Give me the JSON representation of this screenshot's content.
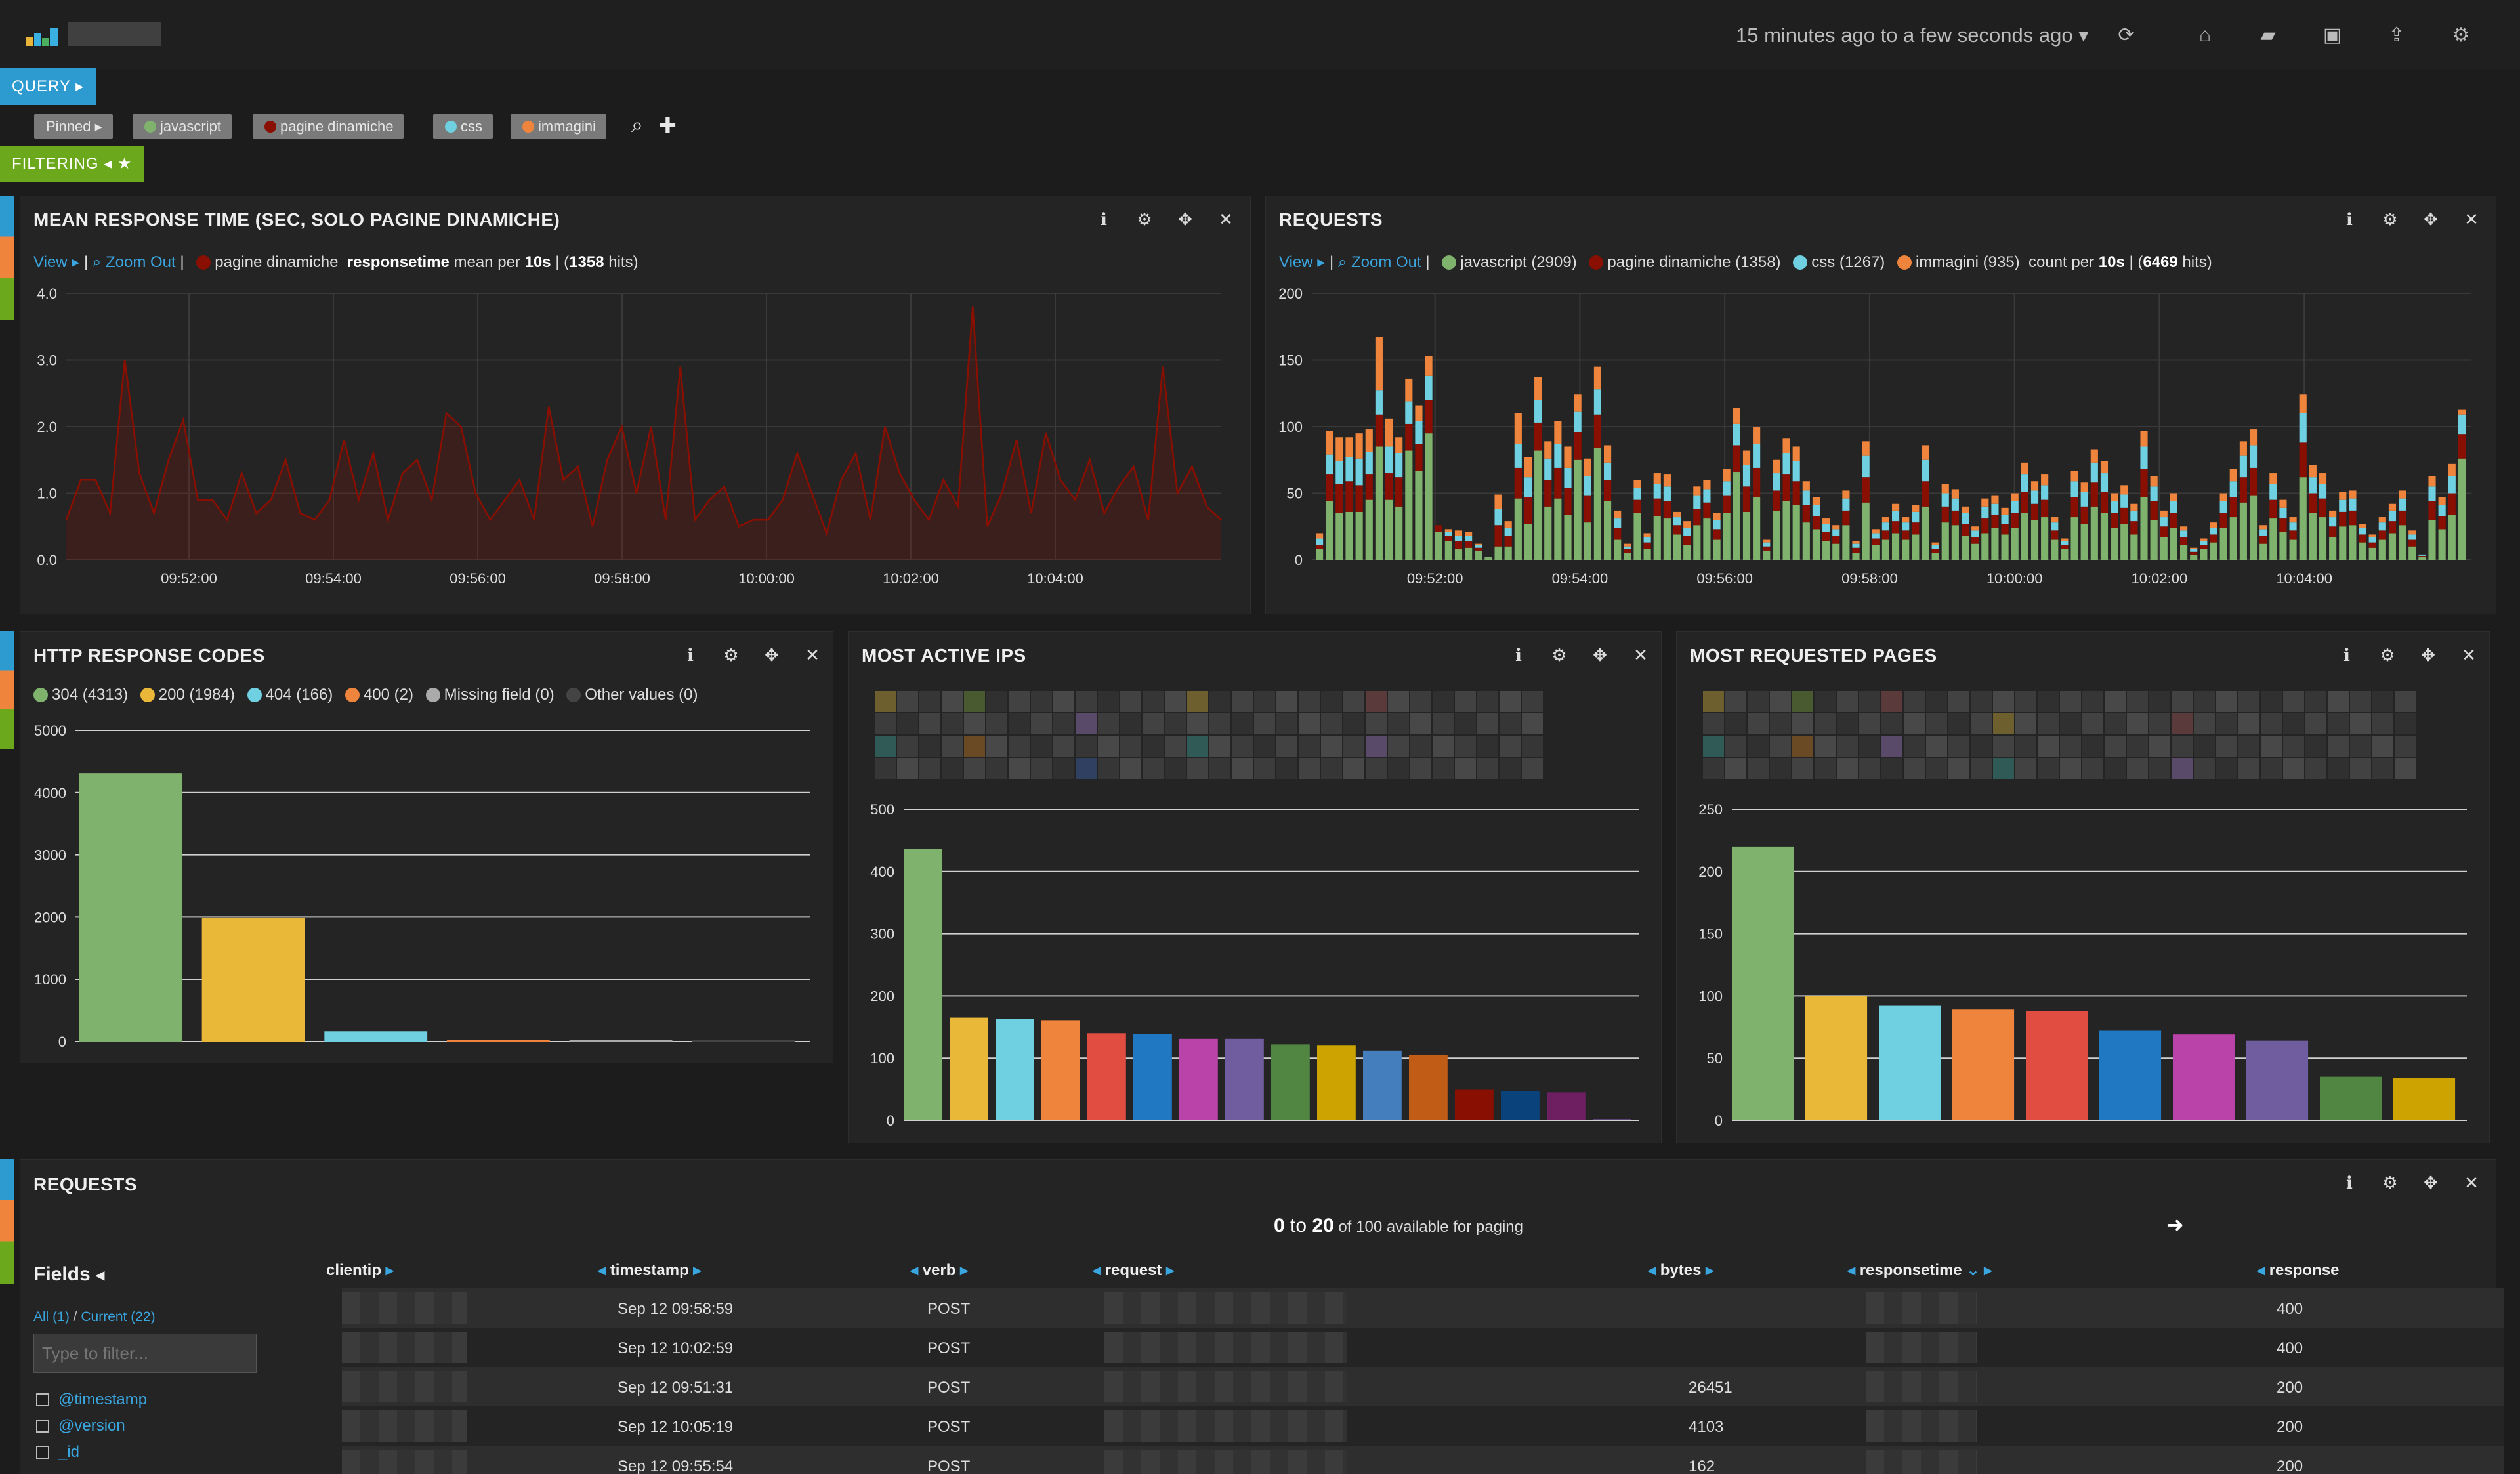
{
  "topbar": {
    "time_range": "15 minutes ago to a few seconds ago",
    "icons": [
      "refresh-icon",
      "home-icon",
      "open-folder-icon",
      "save-icon",
      "share-icon",
      "gear-icon"
    ]
  },
  "query": {
    "label": "QUERY"
  },
  "filtering": {
    "label": "FILTERING"
  },
  "query_pills": [
    {
      "label": "Pinned",
      "color": "#7a7a7a"
    },
    {
      "label": "javascript",
      "color": "#7eb26d"
    },
    {
      "label": "pagine dinamiche",
      "color": "#890f02"
    },
    {
      "label": "css",
      "color": "#6ed0e0"
    },
    {
      "label": "immagini",
      "color": "#ef843c"
    }
  ],
  "panels": {
    "mean_response": {
      "title": "MEAN RESPONSE TIME (SEC, SOLO PAGINE DINAMICHE)",
      "view": "View",
      "zoom_out": "Zoom Out",
      "series_label": "pagine dinamiche",
      "field": "responsetime",
      "agg_text": " mean per ",
      "interval": "10s",
      "hits_prefix": " | (",
      "hits": "1358",
      "hits_suffix": " hits)"
    },
    "requests_chart": {
      "title": "REQUESTS",
      "view": "View",
      "zoom_out": "Zoom Out",
      "legend": [
        {
          "label": "javascript (2909)",
          "color": "#7eb26d"
        },
        {
          "label": "pagine dinamiche (1358)",
          "color": "#890f02"
        },
        {
          "label": "css (1267)",
          "color": "#6ed0e0"
        },
        {
          "label": "immagini (935)",
          "color": "#ef843c"
        }
      ],
      "agg_text": "count per ",
      "interval": "10s",
      "hits_prefix": " | (",
      "hits": "6469",
      "hits_suffix": " hits)"
    },
    "http_codes": {
      "title": "HTTP RESPONSE CODES",
      "legend": [
        {
          "label": "304 (4313)",
          "color": "#7eb26d"
        },
        {
          "label": "200 (1984)",
          "color": "#eab839"
        },
        {
          "label": "404 (166)",
          "color": "#6ed0e0"
        },
        {
          "label": "400 (2)",
          "color": "#ef843c"
        },
        {
          "label": "Missing field (0)",
          "color": "#aaaaaa"
        },
        {
          "label": "Other values (0)",
          "color": "#444444"
        }
      ]
    },
    "active_ips": {
      "title": "MOST ACTIVE IPS"
    },
    "requested_pages": {
      "title": "MOST REQUESTED PAGES"
    },
    "requests_table": {
      "title": "REQUESTS",
      "paging_from": "0",
      "paging_to_word": " to ",
      "paging_to": "20",
      "paging_rest": " of 100 available for paging",
      "fields_title": "Fields",
      "fields_all": "All (1)",
      "fields_sep": " / ",
      "fields_current": "Current (22)",
      "filter_placeholder": "Type to filter...",
      "field_list": [
        "@timestamp",
        "@version",
        "_id"
      ],
      "columns": [
        "clientip",
        "timestamp",
        "verb",
        "request",
        "bytes",
        "responsetime",
        "response"
      ],
      "rows": [
        {
          "timestamp": "Sep 12 09:58:59",
          "verb": "POST",
          "bytes": "",
          "response": "400"
        },
        {
          "timestamp": "Sep 12 10:02:59",
          "verb": "POST",
          "bytes": "",
          "response": "400"
        },
        {
          "timestamp": "Sep 12 09:51:31",
          "verb": "POST",
          "bytes": "26451",
          "response": "200"
        },
        {
          "timestamp": "Sep 12 10:05:19",
          "verb": "POST",
          "bytes": "4103",
          "response": "200"
        },
        {
          "timestamp": "Sep 12 09:55:54",
          "verb": "POST",
          "bytes": "162",
          "response": "200"
        }
      ]
    }
  },
  "chart_data": [
    {
      "type": "area",
      "title": "MEAN RESPONSE TIME (SEC, SOLO PAGINE DINAMICHE)",
      "x_ticks": [
        "09:52:00",
        "09:54:00",
        "09:56:00",
        "09:58:00",
        "10:00:00",
        "10:02:00",
        "10:04:00"
      ],
      "y_ticks": [
        "0.0",
        "1.0",
        "2.0",
        "3.0",
        "4.0"
      ],
      "ylim": [
        0,
        4
      ],
      "color": "#890f02",
      "series": [
        {
          "name": "pagine dinamiche",
          "values": [
            0.6,
            1.2,
            1.2,
            0.7,
            3.0,
            1.3,
            0.7,
            1.5,
            2.1,
            0.9,
            0.9,
            0.6,
            1.3,
            0.7,
            0.9,
            1.5,
            0.7,
            0.6,
            0.9,
            1.8,
            0.9,
            1.6,
            0.6,
            1.3,
            1.5,
            0.9,
            2.2,
            2.0,
            1.0,
            0.6,
            0.9,
            1.2,
            0.6,
            2.3,
            1.2,
            1.4,
            0.5,
            1.5,
            2.0,
            1.0,
            2.0,
            0.6,
            2.9,
            0.6,
            0.9,
            1.1,
            0.5,
            0.6,
            0.6,
            0.9,
            1.6,
            1.0,
            0.4,
            1.2,
            1.6,
            0.6,
            2.0,
            1.3,
            0.9,
            0.6,
            1.2,
            0.8,
            3.8,
            0.5,
            1.0,
            1.8,
            0.7,
            1.9,
            1.2,
            0.9,
            1.5,
            0.7,
            1.1,
            1.4,
            0.6,
            2.9,
            1.0,
            1.4,
            0.8,
            0.6
          ]
        }
      ]
    },
    {
      "type": "bar",
      "title": "REQUESTS",
      "stacked": true,
      "x_ticks": [
        "09:52:00",
        "09:54:00",
        "09:56:00",
        "09:58:00",
        "10:00:00",
        "10:02:00",
        "10:04:00"
      ],
      "y_ticks": [
        "0",
        "50",
        "100",
        "150",
        "200"
      ],
      "ylim": [
        0,
        200
      ],
      "series": [
        {
          "name": "javascript",
          "color": "#7eb26d",
          "values": [
            8,
            44,
            35,
            36,
            36,
            45,
            85,
            45,
            40,
            82,
            67,
            95,
            21,
            14,
            8,
            9,
            7,
            2,
            10,
            10,
            46,
            27,
            82,
            40,
            46,
            34,
            75,
            28,
            84,
            44,
            15,
            5,
            35,
            8,
            33,
            31,
            19,
            11,
            26,
            31,
            15,
            35,
            66,
            36,
            47,
            7,
            37,
            44,
            41,
            28,
            23,
            14,
            12,
            26,
            5,
            43,
            11,
            15,
            20,
            15,
            19,
            40,
            5,
            28,
            26,
            18,
            12,
            20,
            24,
            19,
            24,
            35,
            30,
            32,
            15,
            8,
            32,
            27,
            40,
            35,
            24,
            27,
            19,
            47,
            30,
            17,
            24,
            11,
            4,
            8,
            13,
            24,
            32,
            43,
            48,
            12,
            31,
            21,
            15,
            62,
            35,
            32,
            17,
            25,
            26,
            13,
            9,
            15,
            20,
            26,
            10,
            2,
            30,
            23,
            34,
            76
          ]
        },
        {
          "name": "pagine dinamiche",
          "color": "#890f02",
          "values": [
            3,
            20,
            22,
            23,
            20,
            19,
            24,
            20,
            22,
            20,
            20,
            25,
            5,
            4,
            6,
            5,
            2,
            0,
            16,
            8,
            23,
            20,
            21,
            20,
            23,
            20,
            21,
            20,
            25,
            16,
            9,
            3,
            10,
            5,
            13,
            13,
            7,
            7,
            12,
            12,
            8,
            13,
            20,
            19,
            22,
            3,
            15,
            20,
            18,
            13,
            10,
            7,
            6,
            11,
            4,
            19,
            5,
            7,
            9,
            7,
            9,
            19,
            3,
            12,
            11,
            9,
            5,
            11,
            10,
            8,
            11,
            16,
            12,
            13,
            7,
            3,
            15,
            13,
            18,
            16,
            11,
            12,
            10,
            21,
            14,
            8,
            11,
            6,
            2,
            3,
            6,
            11,
            15,
            19,
            21,
            6,
            14,
            10,
            7,
            26,
            15,
            14,
            8,
            11,
            11,
            6,
            4,
            7,
            9,
            11,
            5,
            1,
            14,
            10,
            16,
            18
          ]
        },
        {
          "name": "css",
          "color": "#6ed0e0",
          "values": [
            5,
            15,
            17,
            18,
            20,
            17,
            18,
            20,
            18,
            17,
            17,
            18,
            0,
            3,
            4,
            4,
            2,
            0,
            12,
            6,
            18,
            15,
            17,
            16,
            18,
            15,
            15,
            15,
            19,
            13,
            7,
            2,
            9,
            4,
            11,
            11,
            6,
            6,
            10,
            10,
            7,
            11,
            16,
            16,
            18,
            3,
            13,
            16,
            15,
            11,
            8,
            6,
            5,
            9,
            3,
            16,
            4,
            6,
            8,
            6,
            8,
            16,
            3,
            10,
            9,
            8,
            5,
            9,
            8,
            7,
            9,
            13,
            10,
            11,
            6,
            3,
            12,
            11,
            15,
            14,
            9,
            10,
            8,
            17,
            11,
            7,
            9,
            5,
            2,
            3,
            5,
            9,
            12,
            16,
            17,
            5,
            12,
            8,
            6,
            22,
            12,
            11,
            7,
            9,
            9,
            5,
            4,
            6,
            8,
            9,
            4,
            1,
            11,
            8,
            13,
            15
          ]
        },
        {
          "name": "immagini",
          "color": "#ef843c",
          "values": [
            4,
            18,
            18,
            15,
            19,
            17,
            40,
            21,
            12,
            17,
            12,
            15,
            0,
            2,
            4,
            3,
            1,
            0,
            11,
            5,
            23,
            15,
            17,
            13,
            17,
            16,
            13,
            13,
            17,
            13,
            6,
            2,
            6,
            3,
            8,
            9,
            4,
            5,
            7,
            7,
            5,
            9,
            12,
            11,
            13,
            2,
            10,
            11,
            11,
            7,
            6,
            4,
            3,
            6,
            2,
            11,
            3,
            4,
            5,
            4,
            5,
            11,
            2,
            7,
            7,
            5,
            3,
            6,
            6,
            5,
            6,
            9,
            7,
            8,
            4,
            2,
            8,
            7,
            10,
            9,
            6,
            7,
            5,
            12,
            8,
            5,
            6,
            3,
            1,
            2,
            4,
            6,
            9,
            11,
            12,
            3,
            8,
            6,
            4,
            14,
            9,
            8,
            5,
            6,
            6,
            3,
            2,
            4,
            5,
            6,
            3,
            0,
            8,
            6,
            9,
            4
          ]
        }
      ]
    },
    {
      "type": "bar",
      "title": "HTTP RESPONSE CODES",
      "categories": [
        "304",
        "200",
        "404",
        "400",
        "Missing field",
        "Other values"
      ],
      "values": [
        4313,
        1984,
        166,
        2,
        0,
        0
      ],
      "colors": [
        "#7eb26d",
        "#eab839",
        "#6ed0e0",
        "#ef843c",
        "#aaaaaa",
        "#444444"
      ],
      "y_ticks": [
        "0",
        "1000",
        "2000",
        "3000",
        "4000",
        "5000"
      ],
      "ylim": [
        0,
        5000
      ]
    },
    {
      "type": "bar",
      "title": "MOST ACTIVE IPS",
      "values": [
        436,
        165,
        163,
        161,
        140,
        139,
        131,
        131,
        122,
        120,
        112,
        105,
        49,
        47,
        45,
        0
      ],
      "colors": [
        "#7eb26d",
        "#eab839",
        "#6ed0e0",
        "#ef843c",
        "#e24d42",
        "#1f78c1",
        "#ba43a9",
        "#705da0",
        "#508642",
        "#cca300",
        "#447ebc",
        "#c15c17",
        "#890f02",
        "#0a437c",
        "#6d1f62",
        "#584477"
      ],
      "y_ticks": [
        "0",
        "100",
        "200",
        "300",
        "400",
        "500"
      ],
      "ylim": [
        0,
        500
      ]
    },
    {
      "type": "bar",
      "title": "MOST REQUESTED PAGES",
      "values": [
        220,
        100,
        92,
        89,
        88,
        72,
        69,
        64,
        35,
        34
      ],
      "colors": [
        "#7eb26d",
        "#eab839",
        "#6ed0e0",
        "#ef843c",
        "#e24d42",
        "#1f78c1",
        "#ba43a9",
        "#705da0",
        "#508642",
        "#cca300"
      ],
      "y_ticks": [
        "0",
        "50",
        "100",
        "150",
        "200",
        "250"
      ],
      "ylim": [
        0,
        250
      ]
    }
  ]
}
